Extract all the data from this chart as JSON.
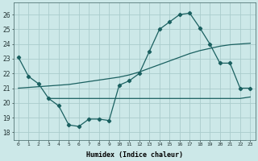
{
  "xlabel": "Humidex (Indice chaleur)",
  "bg_color": "#cce8e8",
  "grid_color": "#aacccc",
  "line_color": "#1a6060",
  "xlim": [
    -0.5,
    23.5
  ],
  "ylim": [
    17.5,
    26.8
  ],
  "yticks": [
    18,
    19,
    20,
    21,
    22,
    23,
    24,
    25,
    26
  ],
  "xticks": [
    0,
    1,
    2,
    3,
    4,
    5,
    6,
    7,
    8,
    9,
    10,
    11,
    12,
    13,
    14,
    15,
    16,
    17,
    18,
    19,
    20,
    21,
    22,
    23
  ],
  "line1_x": [
    0,
    1,
    2,
    3,
    4,
    5,
    6,
    7,
    8,
    9,
    10,
    11,
    12,
    13,
    14,
    15,
    16,
    17,
    18,
    19,
    20,
    21,
    22,
    23
  ],
  "line1_y": [
    23.1,
    21.8,
    21.3,
    20.3,
    19.8,
    18.5,
    18.4,
    18.9,
    18.9,
    18.8,
    21.2,
    21.5,
    22.0,
    23.5,
    25.0,
    25.5,
    26.0,
    26.1,
    25.1,
    24.0,
    22.7,
    22.7,
    21.0,
    21.0
  ],
  "line2_x": [
    3,
    4,
    5,
    6,
    7,
    8,
    9,
    10,
    11,
    12,
    13,
    14,
    15,
    16,
    17,
    18,
    19,
    20,
    21,
    22,
    23
  ],
  "line2_y": [
    20.3,
    20.3,
    20.3,
    20.3,
    20.3,
    20.3,
    20.3,
    20.3,
    20.3,
    20.3,
    20.3,
    20.3,
    20.3,
    20.3,
    20.3,
    20.3,
    20.3,
    20.3,
    20.3,
    20.3,
    20.4
  ],
  "line3_x": [
    0,
    1,
    2,
    3,
    4,
    5,
    6,
    7,
    8,
    9,
    10,
    11,
    12,
    13,
    14,
    15,
    16,
    17,
    18,
    19,
    20,
    21,
    22,
    23
  ],
  "line3_y": [
    21.0,
    21.05,
    21.1,
    21.15,
    21.2,
    21.25,
    21.35,
    21.45,
    21.55,
    21.65,
    21.75,
    21.9,
    22.1,
    22.35,
    22.6,
    22.85,
    23.1,
    23.35,
    23.55,
    23.7,
    23.85,
    23.95,
    24.0,
    24.05
  ]
}
